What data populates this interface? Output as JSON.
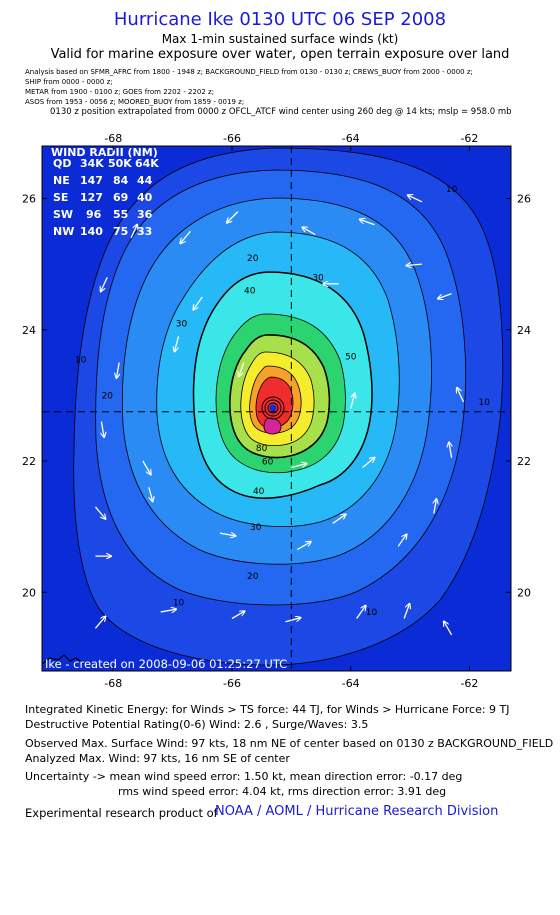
{
  "header": {
    "title": "Hurricane Ike 0130 UTC 06 SEP 2008",
    "subtitle": "Max 1-min sustained surface winds (kt)",
    "valid_note": "Valid for marine exposure over water, open terrain exposure over land"
  },
  "analysis_meta": [
    "Analysis based on  SFMR_AFRC from 1800 - 1948 z;  BACKGROUND_FIELD from 0130 - 0130 z;  CREWS_BUOY from 2000 - 0000 z;",
    "SHIP from 0000 - 0000 z;",
    "METAR from 1900 - 0100 z;  GOES from 2202 - 2202 z;",
    "ASOS from 1953 - 0056 z;   MOORED_BUOY from 1859 - 0019 z;"
  ],
  "position_note": "0130 z position extrapolated from 0000 z OFCL_ATCF wind center using 260 deg @ 14 kts; mslp = 958.0 mb",
  "wind_radii": {
    "title": "WIND RADII (NM)",
    "header": [
      "QD",
      "34K",
      "50K",
      "64K"
    ],
    "rows": [
      [
        "NE",
        "147",
        "84",
        "44"
      ],
      [
        "SE",
        "127",
        "69",
        "40"
      ],
      [
        "SW",
        "96",
        "55",
        "36"
      ],
      [
        "NW",
        "140",
        "75",
        "33"
      ]
    ]
  },
  "credit": "Ike - created on 2008-09-06 01:25:27 UTC",
  "chart_data": {
    "type": "heatmap",
    "xlim": [
      -69.2,
      -61.3
    ],
    "ylim": [
      18.8,
      26.8
    ],
    "x_ticks": [
      -68,
      -66,
      -64,
      -62
    ],
    "x_tick_labels": [
      "-68",
      "-66",
      "-64",
      "-62"
    ],
    "y_ticks": [
      20,
      22,
      24,
      26
    ],
    "y_tick_labels": [
      "20",
      "22",
      "24",
      "26"
    ],
    "center": {
      "lon": -65.0,
      "lat": 22.75
    },
    "contour_levels": [
      10,
      20,
      30,
      40,
      50,
      60,
      64,
      70,
      80,
      90
    ],
    "contour_labels": [
      {
        "text": "10",
        "lon": -62.3,
        "lat": 26.1
      },
      {
        "text": "20",
        "lon": -65.65,
        "lat": 25.05
      },
      {
        "text": "30",
        "lon": -64.55,
        "lat": 24.75
      },
      {
        "text": "40",
        "lon": -65.7,
        "lat": 24.55
      },
      {
        "text": "30",
        "lon": -66.85,
        "lat": 24.05
      },
      {
        "text": "10",
        "lon": -68.55,
        "lat": 23.5
      },
      {
        "text": "50",
        "lon": -64.0,
        "lat": 23.55
      },
      {
        "text": "20",
        "lon": -68.1,
        "lat": 22.95
      },
      {
        "text": "10",
        "lon": -61.75,
        "lat": 22.85
      },
      {
        "text": "80",
        "lon": -65.5,
        "lat": 22.15
      },
      {
        "text": "60",
        "lon": -65.4,
        "lat": 21.95
      },
      {
        "text": "40",
        "lon": -65.55,
        "lat": 21.5
      },
      {
        "text": "30",
        "lon": -65.6,
        "lat": 20.95
      },
      {
        "text": "20",
        "lon": -65.65,
        "lat": 20.2
      },
      {
        "text": "10",
        "lon": -66.9,
        "lat": 19.8
      },
      {
        "text": "10",
        "lon": -63.65,
        "lat": 19.65
      }
    ],
    "vectors": [
      {
        "lon": -65.9,
        "lat": 25.8,
        "dir": 225,
        "len": 0.75
      },
      {
        "lon": -66.7,
        "lat": 25.5,
        "dir": 220,
        "len": 0.75
      },
      {
        "lon": -63.6,
        "lat": 25.6,
        "dir": 290,
        "len": 0.75
      },
      {
        "lon": -62.8,
        "lat": 25.95,
        "dir": 295,
        "len": 0.75
      },
      {
        "lon": -62.8,
        "lat": 25.0,
        "dir": 265,
        "len": 0.75
      },
      {
        "lon": -64.6,
        "lat": 25.45,
        "dir": 300,
        "len": 0.7
      },
      {
        "lon": -68.1,
        "lat": 24.8,
        "dir": 205,
        "len": 0.75
      },
      {
        "lon": -66.5,
        "lat": 24.5,
        "dir": 215,
        "len": 0.75
      },
      {
        "lon": -64.2,
        "lat": 24.7,
        "dir": 270,
        "len": 0.75
      },
      {
        "lon": -62.3,
        "lat": 24.55,
        "dir": 250,
        "len": 0.7
      },
      {
        "lon": -66.9,
        "lat": 23.9,
        "dir": 195,
        "len": 0.75
      },
      {
        "lon": -67.9,
        "lat": 23.5,
        "dir": 190,
        "len": 0.75
      },
      {
        "lon": -65.8,
        "lat": 23.5,
        "dir": 200,
        "len": 0.7
      },
      {
        "lon": -64.0,
        "lat": 22.8,
        "dir": 15,
        "len": 0.75
      },
      {
        "lon": -62.1,
        "lat": 22.9,
        "dir": 335,
        "len": 0.75
      },
      {
        "lon": -68.2,
        "lat": 22.6,
        "dir": 170,
        "len": 0.75
      },
      {
        "lon": -67.5,
        "lat": 22.0,
        "dir": 150,
        "len": 0.75
      },
      {
        "lon": -68.3,
        "lat": 21.3,
        "dir": 140,
        "len": 0.75
      },
      {
        "lon": -67.4,
        "lat": 21.6,
        "dir": 165,
        "len": 0.7
      },
      {
        "lon": -65.0,
        "lat": 21.9,
        "dir": 75,
        "len": 0.75
      },
      {
        "lon": -62.3,
        "lat": 22.05,
        "dir": 350,
        "len": 0.75
      },
      {
        "lon": -63.8,
        "lat": 21.9,
        "dir": 50,
        "len": 0.75
      },
      {
        "lon": -66.2,
        "lat": 20.9,
        "dir": 100,
        "len": 0.75
      },
      {
        "lon": -64.3,
        "lat": 21.05,
        "dir": 55,
        "len": 0.75
      },
      {
        "lon": -62.6,
        "lat": 21.2,
        "dir": 10,
        "len": 0.7
      },
      {
        "lon": -68.3,
        "lat": 20.55,
        "dir": 90,
        "len": 0.75
      },
      {
        "lon": -64.9,
        "lat": 20.65,
        "dir": 60,
        "len": 0.75
      },
      {
        "lon": -63.2,
        "lat": 20.7,
        "dir": 35,
        "len": 0.7
      },
      {
        "lon": -68.3,
        "lat": 19.45,
        "dir": 40,
        "len": 0.75
      },
      {
        "lon": -67.2,
        "lat": 19.7,
        "dir": 80,
        "len": 0.75
      },
      {
        "lon": -66.0,
        "lat": 19.6,
        "dir": 60,
        "len": 0.7
      },
      {
        "lon": -65.1,
        "lat": 19.55,
        "dir": 75,
        "len": 0.75
      },
      {
        "lon": -63.9,
        "lat": 19.6,
        "dir": 35,
        "len": 0.75
      },
      {
        "lon": -63.1,
        "lat": 19.6,
        "dir": 20,
        "len": 0.75
      },
      {
        "lon": -62.3,
        "lat": 19.35,
        "dir": 330,
        "len": 0.75
      },
      {
        "lon": -67.7,
        "lat": 25.4,
        "dir": 25,
        "len": 0.7
      }
    ]
  },
  "stats": {
    "ike_line": "Integrated Kinetic Energy:  for Winds > TS force: 44 TJ,  for Winds > Hurricane Force: 9 TJ",
    "dp_line": "Destructive Potential Rating(0-6)   Wind: 2.6 , Surge/Waves: 3.5",
    "observed_line": "Observed Max. Surface Wind: 97 kts, 18 nm NE of center based on 0130 z BACKGROUND_FIELD",
    "analyzed_line": "Analyzed Max. Wind: 97 kts, 16 nm SE of center",
    "uncertainty_line": "Uncertainty -> mean wind speed error: 1.50 kt,   mean direction error:  -0.17 deg",
    "rms_line": "rms wind speed error: 4.04 kt,   rms direction error: 3.91 deg"
  },
  "footer": {
    "label": "Experimental research product of",
    "link": "NOAA / AOML / Hurricane Research Division"
  },
  "colors": {
    "title": "#1a1ad8",
    "link": "#1a1ad8",
    "plot_background": "#0b2bd6",
    "contour_line": "#000000",
    "vector": "#ffffff"
  }
}
